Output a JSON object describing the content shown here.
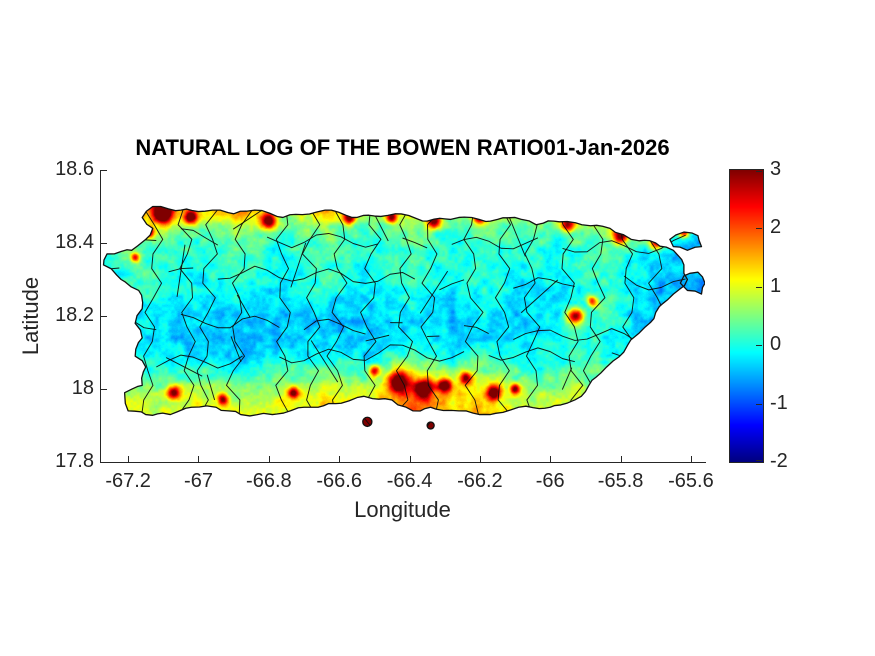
{
  "chart_data": {
    "type": "heatmap",
    "title": "NATURAL LOG OF THE BOWEN RATIO01-Jan-2026",
    "xlabel": "Longitude",
    "ylabel": "Latitude",
    "region": "Puerto Rico municipalities",
    "colormap": "jet",
    "xlim": [
      -67.28,
      -65.56
    ],
    "ylim": [
      17.8,
      18.6
    ],
    "x_ticks": [
      -67.2,
      -67,
      -66.8,
      -66.6,
      -66.4,
      -66.2,
      -66,
      -65.8,
      -65.6
    ],
    "x_tick_labels": [
      "-67.2",
      "-67",
      "-66.8",
      "-66.6",
      "-66.4",
      "-66.2",
      "-66",
      "-65.8",
      "-65.6"
    ],
    "y_ticks": [
      17.8,
      18,
      18.2,
      18.4,
      18.6
    ],
    "y_tick_labels": [
      "17.8",
      "18",
      "18.2",
      "18.4",
      "18.6"
    ],
    "colorbar": {
      "min": -2,
      "max": 3,
      "ticks": [
        3,
        2,
        1,
        0,
        -1,
        -2
      ],
      "tick_labels": [
        "3",
        "2",
        "1",
        "0",
        "-1",
        "-2"
      ]
    },
    "noise_amplitude": 0.4,
    "field": {
      "lon_min": -67.3,
      "lon_max": -65.55,
      "lat_min": 17.88,
      "lat_max": 18.55,
      "rows_north_to_south": [
        [
          1.2,
          1.4,
          1.8,
          2.2,
          1.6,
          1.3,
          1.7,
          2.0,
          1.5,
          1.2,
          1.6,
          1.9,
          1.4,
          1.1,
          1.5,
          1.8,
          1.3,
          1.2,
          1.6,
          1.4,
          1.1,
          1.5,
          1.2,
          1.4,
          1.7,
          1.3,
          1.5,
          1.2,
          1.0,
          0.8
        ],
        [
          0.8,
          1.0,
          1.6,
          2.4,
          1.8,
          1.2,
          1.5,
          2.2,
          1.4,
          1.0,
          1.3,
          1.8,
          1.2,
          0.9,
          1.4,
          1.6,
          1.1,
          0.9,
          1.3,
          1.2,
          0.8,
          1.1,
          0.9,
          1.2,
          1.5,
          1.8,
          1.3,
          0.9,
          0.7,
          0.6
        ],
        [
          0.3,
          0.4,
          0.7,
          0.9,
          0.6,
          0.4,
          0.6,
          0.8,
          0.5,
          0.3,
          0.5,
          0.7,
          0.4,
          0.2,
          0.5,
          0.6,
          0.3,
          0.2,
          0.4,
          0.5,
          0.2,
          0.4,
          0.3,
          0.5,
          0.7,
          0.6,
          0.4,
          0.2,
          0.0,
          -0.2
        ],
        [
          0.1,
          0.2,
          0.3,
          0.4,
          0.2,
          0.1,
          0.2,
          0.3,
          0.2,
          0.0,
          0.2,
          0.3,
          0.1,
          0.0,
          0.2,
          0.3,
          0.1,
          0.0,
          0.2,
          0.2,
          0.0,
          0.1,
          0.0,
          0.2,
          0.3,
          0.2,
          0.0,
          -0.2,
          -0.4,
          -0.5
        ],
        [
          0.0,
          0.1,
          0.2,
          0.2,
          0.1,
          0.0,
          0.1,
          0.2,
          0.0,
          -0.1,
          0.1,
          0.2,
          0.0,
          -0.1,
          0.1,
          0.2,
          0.0,
          -0.1,
          0.1,
          0.1,
          -0.1,
          0.0,
          -0.1,
          0.1,
          0.2,
          0.0,
          -0.2,
          -0.4,
          -0.5,
          -0.6
        ],
        [
          -0.1,
          0.0,
          0.1,
          0.1,
          0.0,
          -0.1,
          0.0,
          0.1,
          -0.1,
          -0.2,
          0.0,
          0.1,
          -0.1,
          -0.2,
          0.0,
          0.1,
          -0.1,
          -0.2,
          0.0,
          0.0,
          -0.2,
          -0.1,
          -0.2,
          0.0,
          0.1,
          -0.1,
          -0.3,
          -0.5,
          -0.5,
          -0.6
        ],
        [
          -0.1,
          -0.1,
          0.0,
          0.0,
          -0.1,
          -0.2,
          -0.2,
          -0.1,
          -0.3,
          -0.3,
          -0.2,
          -0.1,
          -0.3,
          -0.3,
          -0.1,
          0.0,
          -0.2,
          -0.3,
          -0.1,
          -0.1,
          -0.3,
          -0.2,
          -0.3,
          -0.1,
          0.2,
          0.0,
          -0.3,
          -0.5,
          -0.6,
          -0.6
        ],
        [
          0.0,
          -0.1,
          -0.2,
          -0.2,
          -0.3,
          -0.3,
          -0.4,
          -0.4,
          -0.5,
          -0.4,
          -0.4,
          -0.3,
          -0.4,
          -0.5,
          -0.3,
          -0.2,
          -0.4,
          -0.4,
          -0.2,
          -0.2,
          -0.4,
          -0.3,
          -0.2,
          0.3,
          0.1,
          -0.1,
          -0.4,
          -0.5,
          -0.5,
          -0.5
        ],
        [
          0.1,
          0.0,
          -0.2,
          -0.3,
          -0.4,
          -0.4,
          -0.5,
          -0.5,
          -0.5,
          -0.4,
          -0.4,
          -0.3,
          -0.4,
          -0.4,
          -0.3,
          -0.2,
          -0.3,
          -0.3,
          -0.2,
          -0.3,
          -0.4,
          -0.3,
          -0.1,
          0.2,
          0.0,
          -0.2,
          -0.4,
          -0.4,
          -0.3,
          -0.3
        ],
        [
          0.3,
          0.2,
          0.0,
          -0.1,
          -0.2,
          -0.2,
          -0.3,
          -0.3,
          -0.2,
          -0.2,
          -0.1,
          0.0,
          -0.1,
          -0.2,
          0.1,
          0.3,
          0.0,
          -0.1,
          0.2,
          0.1,
          -0.1,
          -0.1,
          0.0,
          0.2,
          0.1,
          0.0,
          -0.2,
          -0.2,
          -0.1,
          -0.1
        ],
        [
          0.6,
          0.5,
          0.3,
          0.2,
          0.2,
          0.3,
          0.2,
          0.2,
          0.3,
          0.3,
          0.4,
          0.5,
          0.4,
          0.3,
          0.8,
          1.2,
          0.9,
          0.7,
          0.8,
          0.5,
          0.3,
          0.2,
          0.3,
          0.4,
          0.3,
          0.2,
          0.1,
          0.0,
          0.1,
          0.0
        ],
        [
          1.0,
          0.9,
          0.8,
          0.7,
          0.8,
          0.9,
          0.8,
          0.7,
          0.8,
          0.9,
          1.0,
          1.1,
          1.0,
          0.9,
          1.4,
          1.8,
          1.5,
          1.2,
          1.3,
          1.0,
          0.8,
          0.7,
          0.8,
          0.9,
          0.8,
          0.6,
          0.4,
          0.3,
          0.3,
          0.2
        ],
        [
          1.2,
          1.1,
          1.0,
          0.9,
          1.0,
          1.2,
          1.1,
          1.0,
          1.1,
          1.2,
          1.3,
          1.4,
          1.2,
          1.1,
          1.6,
          2.0,
          1.7,
          1.4,
          1.5,
          1.2,
          1.0,
          0.9,
          1.0,
          1.1,
          0.9,
          0.7,
          0.5,
          0.4,
          0.4,
          0.3
        ],
        [
          1.3,
          1.2,
          1.1,
          1.0,
          1.1,
          1.3,
          1.2,
          1.1,
          1.2,
          1.3,
          1.4,
          1.5,
          1.3,
          1.2,
          1.7,
          2.1,
          1.8,
          1.5,
          1.6,
          1.3,
          1.1,
          1.0,
          1.1,
          1.2,
          1.0,
          0.8,
          0.6,
          0.5,
          0.5,
          0.4
        ]
      ]
    },
    "hotspots": [
      [
        -67.1,
        18.48,
        0.025,
        3.0
      ],
      [
        -67.02,
        18.47,
        0.02,
        2.6
      ],
      [
        -67.14,
        18.43,
        0.015,
        2.4
      ],
      [
        -66.8,
        18.46,
        0.022,
        3.0
      ],
      [
        -66.57,
        18.47,
        0.018,
        2.6
      ],
      [
        -66.45,
        18.47,
        0.015,
        2.4
      ],
      [
        -66.33,
        18.46,
        0.02,
        2.8
      ],
      [
        -66.2,
        18.47,
        0.018,
        2.5
      ],
      [
        -65.95,
        18.45,
        0.02,
        2.7
      ],
      [
        -65.8,
        18.42,
        0.022,
        2.8
      ],
      [
        -65.7,
        18.4,
        0.018,
        2.5
      ],
      [
        -65.62,
        18.43,
        0.015,
        2.5
      ],
      [
        -65.93,
        18.2,
        0.022,
        2.8
      ],
      [
        -65.88,
        18.24,
        0.015,
        2.2
      ],
      [
        -66.43,
        18.02,
        0.03,
        2.9
      ],
      [
        -66.36,
        18.0,
        0.025,
        3.0
      ],
      [
        -66.3,
        18.01,
        0.02,
        2.6
      ],
      [
        -66.24,
        18.03,
        0.018,
        2.4
      ],
      [
        -66.16,
        17.99,
        0.02,
        2.7
      ],
      [
        -66.5,
        18.05,
        0.015,
        2.2
      ],
      [
        -66.1,
        18.0,
        0.015,
        2.3
      ],
      [
        -67.07,
        17.99,
        0.018,
        2.6
      ],
      [
        -66.93,
        17.97,
        0.015,
        2.4
      ],
      [
        -66.73,
        17.99,
        0.015,
        2.3
      ],
      [
        -67.18,
        18.36,
        0.013,
        2.2
      ],
      [
        -66.52,
        17.91,
        0.02,
        2.5
      ],
      [
        -66.34,
        17.9,
        0.015,
        2.3
      ]
    ],
    "boundary_lons": [
      -67.13,
      -67.04,
      -66.95,
      -66.86,
      -66.77,
      -66.68,
      -66.59,
      -66.5,
      -66.41,
      -66.32,
      -66.23,
      -66.14,
      -66.05,
      -65.96,
      -65.87,
      -65.78,
      -65.69
    ],
    "boundary_lats": [
      18.42,
      18.31,
      18.19,
      18.07
    ],
    "coastline": {
      "main": [
        [
          -67.16,
          18.47
        ],
        [
          -67.13,
          18.5
        ],
        [
          -67.05,
          18.49
        ],
        [
          -66.96,
          18.49
        ],
        [
          -66.9,
          18.48
        ],
        [
          -66.84,
          18.49
        ],
        [
          -66.76,
          18.47
        ],
        [
          -66.64,
          18.49
        ],
        [
          -66.55,
          18.47
        ],
        [
          -66.44,
          18.48
        ],
        [
          -66.35,
          18.46
        ],
        [
          -66.26,
          18.47
        ],
        [
          -66.17,
          18.46
        ],
        [
          -66.1,
          18.47
        ],
        [
          -66.04,
          18.45
        ],
        [
          -65.99,
          18.46
        ],
        [
          -65.91,
          18.45
        ],
        [
          -65.83,
          18.44
        ],
        [
          -65.77,
          18.41
        ],
        [
          -65.7,
          18.4
        ],
        [
          -65.65,
          18.38
        ],
        [
          -65.62,
          18.34
        ],
        [
          -65.61,
          18.3
        ],
        [
          -65.65,
          18.26
        ],
        [
          -65.7,
          18.21
        ],
        [
          -65.73,
          18.17
        ],
        [
          -65.78,
          18.12
        ],
        [
          -65.84,
          18.06
        ],
        [
          -65.89,
          18.01
        ],
        [
          -65.93,
          17.97
        ],
        [
          -66.0,
          17.95
        ],
        [
          -66.09,
          17.95
        ],
        [
          -66.17,
          17.93
        ],
        [
          -66.26,
          17.94
        ],
        [
          -66.34,
          17.95
        ],
        [
          -66.39,
          17.94
        ],
        [
          -66.45,
          17.97
        ],
        [
          -66.53,
          17.98
        ],
        [
          -66.61,
          17.96
        ],
        [
          -66.7,
          17.95
        ],
        [
          -66.79,
          17.93
        ],
        [
          -66.88,
          17.93
        ],
        [
          -66.95,
          17.95
        ],
        [
          -67.02,
          17.95
        ],
        [
          -67.08,
          17.93
        ],
        [
          -67.15,
          17.93
        ],
        [
          -67.2,
          17.94
        ],
        [
          -67.21,
          17.99
        ],
        [
          -67.16,
          18.01
        ],
        [
          -67.15,
          18.06
        ],
        [
          -67.18,
          18.09
        ],
        [
          -67.16,
          18.14
        ],
        [
          -67.18,
          18.18
        ],
        [
          -67.16,
          18.22
        ],
        [
          -67.17,
          18.27
        ],
        [
          -67.22,
          18.3
        ],
        [
          -67.27,
          18.34
        ],
        [
          -67.26,
          18.37
        ],
        [
          -67.19,
          18.38
        ],
        [
          -67.15,
          18.41
        ],
        [
          -67.13,
          18.44
        ]
      ],
      "islets": [
        [
          [
            -65.66,
            18.41
          ],
          [
            -65.62,
            18.43
          ],
          [
            -65.58,
            18.42
          ],
          [
            -65.57,
            18.39
          ],
          [
            -65.61,
            18.38
          ],
          [
            -65.65,
            18.39
          ]
        ],
        [
          [
            -65.62,
            18.31
          ],
          [
            -65.58,
            18.32
          ],
          [
            -65.56,
            18.29
          ],
          [
            -65.57,
            18.26
          ],
          [
            -65.61,
            18.27
          ],
          [
            -65.63,
            18.29
          ]
        ]
      ],
      "islet_dots": [
        [
          -66.52,
          17.91,
          0.013
        ],
        [
          -66.34,
          17.9,
          0.01
        ]
      ]
    }
  }
}
